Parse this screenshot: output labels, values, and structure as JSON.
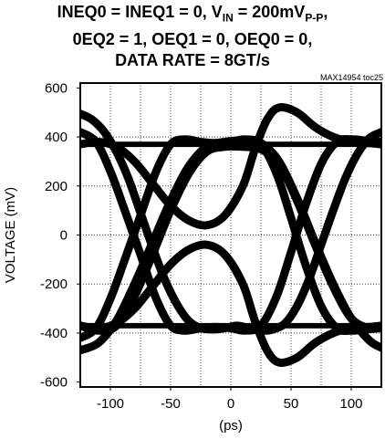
{
  "chart_data": {
    "type": "line",
    "title_lines": [
      {
        "parts": [
          {
            "text": "INEQ0 = INEQ1 = 0, V"
          },
          {
            "text": "IN",
            "sub": true
          },
          {
            "text": " = 200mV"
          },
          {
            "text": "P-P",
            "sub": true
          },
          {
            "text": ","
          }
        ]
      },
      {
        "parts": [
          {
            "text": "0EQ2 = 1, OEQ1 = 0, OEQ0 = 0,"
          }
        ]
      },
      {
        "parts": [
          {
            "text": "DATA RATE = 8GT/s"
          }
        ]
      }
    ],
    "source_id": "MAX14954 toc25",
    "xlabel": "(ps)",
    "ylabel": "VOLTAGE (mV)",
    "xlim": [
      -125,
      125
    ],
    "ylim": [
      -620,
      620
    ],
    "xticks": [
      -100,
      -50,
      0,
      50,
      100
    ],
    "yticks": [
      -600,
      -400,
      -200,
      0,
      200,
      400,
      600
    ],
    "xgrid": [
      -100,
      -75,
      -50,
      -25,
      0,
      25,
      50,
      75,
      100
    ],
    "ygrid": [
      -400,
      -200,
      0,
      200,
      400
    ],
    "grid": true,
    "grid_style": "dotted",
    "legend": "none",
    "series": [
      {
        "x": [
          -125,
          -115,
          -105,
          -95,
          -85,
          -75,
          -65,
          -55,
          -45,
          -35,
          -25,
          -15,
          -5,
          5,
          15,
          25,
          35,
          45,
          55,
          65,
          75,
          85,
          95,
          105,
          115,
          125
        ],
        "y": [
          495,
          470,
          420,
          340,
          230,
          90,
          -50,
          -180,
          -280,
          -350,
          -380,
          -385,
          -380,
          -370,
          -380,
          -390,
          -385,
          -360,
          -290,
          -180,
          -40,
          100,
          230,
          330,
          395,
          420
        ]
      },
      {
        "x": [
          -125,
          -110,
          -95,
          -80,
          -65,
          -50,
          -35,
          -20,
          -5,
          10,
          25,
          40,
          55,
          70,
          85,
          100,
          115,
          125
        ],
        "y": [
          -470,
          -440,
          -350,
          -200,
          -30,
          140,
          280,
          360,
          380,
          385,
          375,
          300,
          150,
          -30,
          -200,
          -340,
          -430,
          -460
        ]
      },
      {
        "x": [
          -125,
          -110,
          -95,
          -80,
          -65,
          -50,
          -35,
          -20,
          -5,
          10,
          25,
          40,
          55,
          70,
          85,
          100,
          115,
          125
        ],
        "y": [
          -370,
          -390,
          -370,
          -250,
          -80,
          100,
          250,
          340,
          360,
          360,
          350,
          290,
          140,
          -40,
          -210,
          -340,
          -380,
          -370
        ]
      },
      {
        "x": [
          -125,
          -110,
          -95,
          -80,
          -65,
          -50,
          -35,
          -20,
          -5,
          10,
          20,
          30,
          40,
          55,
          70,
          85,
          100,
          115,
          125
        ],
        "y": [
          370,
          380,
          360,
          300,
          210,
          120,
          60,
          40,
          80,
          200,
          350,
          470,
          520,
          500,
          440,
          400,
          380,
          375,
          370
        ]
      },
      {
        "x": [
          -125,
          -110,
          -95,
          -80,
          -65,
          -50,
          -35,
          -20,
          -5,
          10,
          20,
          30,
          40,
          55,
          70,
          85,
          100,
          115,
          125
        ],
        "y": [
          -370,
          -380,
          -360,
          -300,
          -210,
          -120,
          -60,
          -40,
          -80,
          -200,
          -350,
          -470,
          -520,
          -500,
          -440,
          -400,
          -380,
          -375,
          -370
        ]
      },
      {
        "x": [
          -125,
          -112,
          -100,
          -88,
          -75,
          -62,
          -50,
          -38,
          -25,
          -12,
          0,
          12,
          25,
          38,
          50,
          62,
          75,
          88,
          100,
          112,
          125
        ],
        "y": [
          420,
          380,
          260,
          100,
          -80,
          -260,
          -370,
          -390,
          -380,
          -375,
          -380,
          -390,
          -370,
          -250,
          -70,
          120,
          290,
          380,
          390,
          385,
          380
        ]
      },
      {
        "x": [
          -125,
          -112,
          -100,
          -88,
          -75,
          -62,
          -50,
          -38,
          -25,
          -12,
          0,
          12,
          25,
          38,
          50,
          62,
          75,
          88,
          100,
          112,
          125
        ],
        "y": [
          -420,
          -380,
          -260,
          -100,
          80,
          260,
          370,
          390,
          380,
          375,
          380,
          390,
          370,
          250,
          70,
          -120,
          -290,
          -380,
          -390,
          -385,
          -380
        ]
      }
    ]
  },
  "bands": [
    {
      "y": 370,
      "thickness_mv": 22
    },
    {
      "y": -370,
      "thickness_mv": 22
    }
  ]
}
